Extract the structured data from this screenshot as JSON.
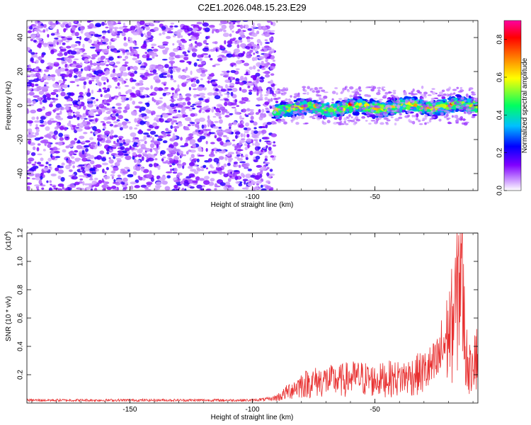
{
  "title": "C2E1.2026.048.15.23.E29",
  "chart_data": [
    {
      "type": "heatmap",
      "name": "spectrogram",
      "xlabel": "Height of straight line (km)",
      "ylabel": "Frequency (Hz)",
      "xlim": [
        -192,
        -8
      ],
      "ylim": [
        -50,
        50
      ],
      "xticks": [
        -150,
        -100,
        -50
      ],
      "yticks": [
        -40,
        -20,
        0,
        20,
        40
      ],
      "colorbar": {
        "label": "Normalized spectral amplitude",
        "range": [
          0.0,
          0.9
        ],
        "ticks": [
          0.0,
          0.2,
          0.4,
          0.6,
          0.8
        ],
        "colors": [
          "#ffffff",
          "#cc99ff",
          "#8000ff",
          "#0000ff",
          "#00c0ff",
          "#00ff60",
          "#ffff00",
          "#ff8000",
          "#ff0000",
          "#ff00a0"
        ]
      },
      "regions": [
        {
          "x_range": [
            -192,
            -91
          ],
          "freq_range": [
            -50,
            50
          ],
          "description_level": "noise",
          "amplitude_range": [
            0.0,
            0.15
          ]
        },
        {
          "x_range": [
            -91,
            -8
          ],
          "freq_center": [
            -2,
            0
          ],
          "freq_halfwidth": 6,
          "amplitude_range": [
            0.1,
            0.9
          ]
        }
      ]
    },
    {
      "type": "line",
      "name": "snr",
      "xlabel": "Height of straight line (km)",
      "ylabel": "SNR (10 * v/v)",
      "y_multiplier": "(x10",
      "y_multiplier_exp": "4",
      "y_multiplier_close": ")",
      "xlim": [
        -192,
        -8
      ],
      "ylim": [
        0,
        1.2
      ],
      "xticks": [
        -150,
        -100,
        -50
      ],
      "yticks": [
        0.2,
        0.4,
        0.6,
        0.8,
        1.0,
        1.2
      ],
      "line_color": "#e83030",
      "series": [
        {
          "name": "SNR",
          "x": [
            -192,
            -150,
            -100,
            -92,
            -88,
            -85,
            -80,
            -75,
            -70,
            -65,
            -60,
            -55,
            -50,
            -45,
            -40,
            -35,
            -30,
            -25,
            -20,
            -17,
            -15,
            -13,
            -11,
            -10,
            -8
          ],
          "y": [
            0.02,
            0.02,
            0.02,
            0.03,
            0.06,
            0.1,
            0.15,
            0.17,
            0.18,
            0.18,
            0.2,
            0.2,
            0.18,
            0.2,
            0.2,
            0.22,
            0.25,
            0.3,
            0.55,
            0.75,
            1.2,
            0.4,
            0.25,
            0.45,
            0.35
          ]
        }
      ]
    }
  ]
}
